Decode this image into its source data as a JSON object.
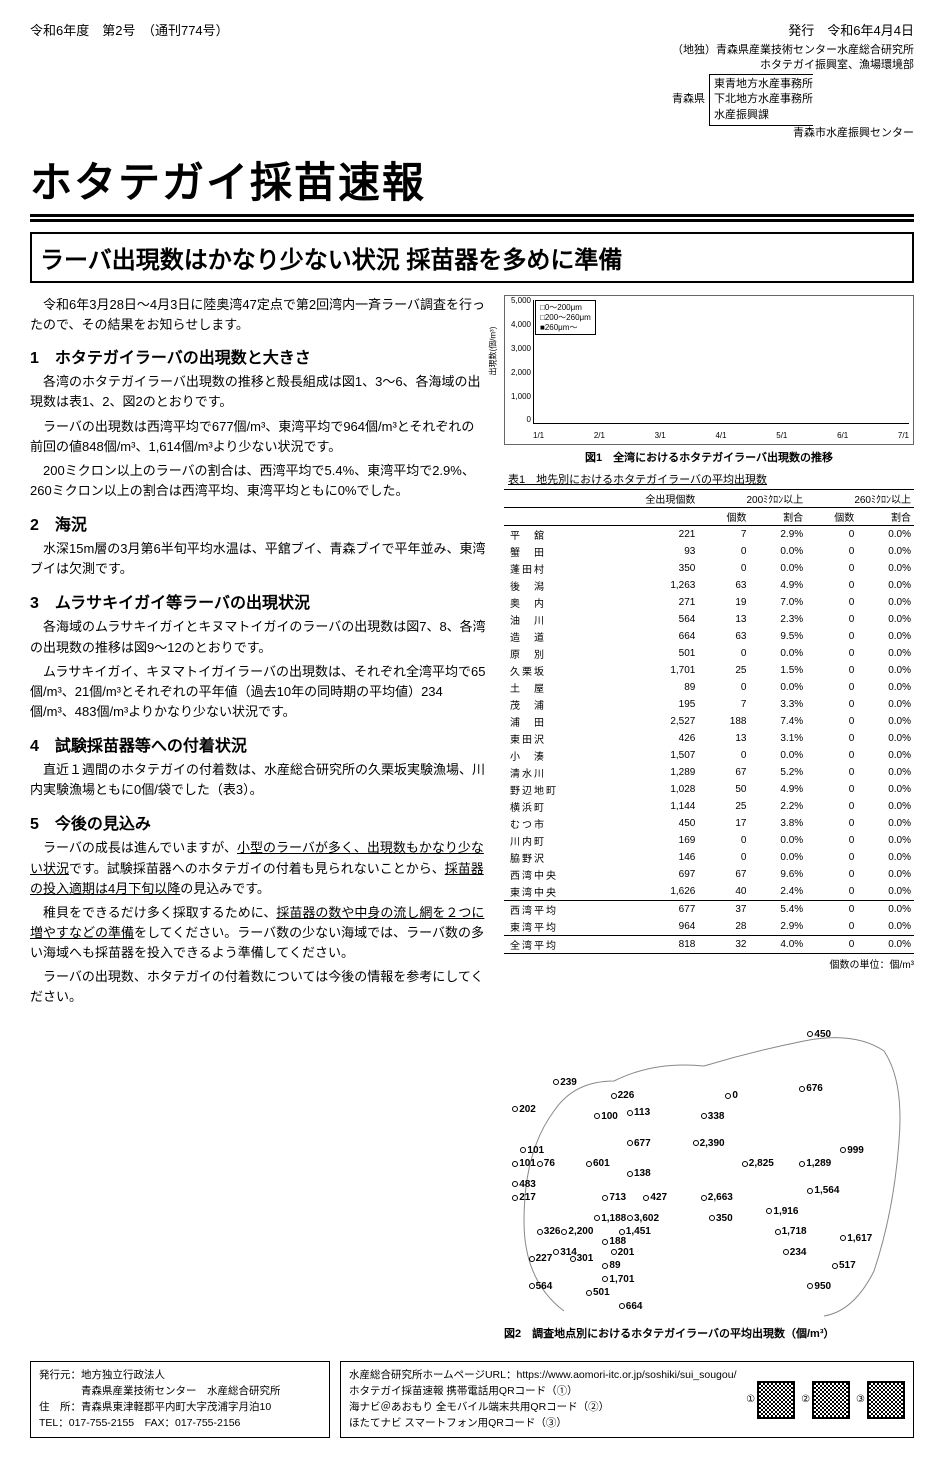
{
  "header": {
    "left": "令和6年度　第2号　（通刊774号）",
    "right": "発行　令和6年4月4日"
  },
  "publisher": {
    "line1": "（地独）青森県産業技術センター水産総合研究所",
    "line2": "ホタテガイ振興室、漁場環境部",
    "pref": "青森県",
    "offices": [
      "東青地方水産事務所",
      "下北地方水産事務所",
      "水産振興課"
    ],
    "last": "青森市水産振興センター"
  },
  "main_title": "ホタテガイ採苗速報",
  "headline": "ラーバ出現数はかなり少ない状況 採苗器を多めに準備",
  "lead": "令和6年3月28日～4月3日に陸奥湾47定点で第2回湾内一斉ラーバ調査を行ったので、その結果をお知らせします。",
  "sections": {
    "s1": {
      "title": "1　ホタテガイラーバの出現数と大きさ",
      "p1": "各湾のホタテガイラーバ出現数の推移と殻長組成は図1、3～6、各海域の出現数は表1、2、図2のとおりです。",
      "p2": "ラーバの出現数は西湾平均で677個/m³、東湾平均で964個/m³とそれぞれの前回の値848個/m³、1,614個/m³より少ない状況です。",
      "p3": "200ミクロン以上のラーバの割合は、西湾平均で5.4%、東湾平均で2.9%、260ミクロン以上の割合は西湾平均、東湾平均ともに0%でした。"
    },
    "s2": {
      "title": "2　海況",
      "p1": "水深15m層の3月第6半旬平均水温は、平舘ブイ、青森ブイで平年並み、東湾ブイは欠測です。"
    },
    "s3": {
      "title": "3　ムラサキイガイ等ラーバの出現状況",
      "p1": "各海域のムラサキイガイとキヌマトイガイのラーバの出現数は図7、8、各湾の出現数の推移は図9～12のとおりです。",
      "p2": "ムラサキイガイ、キヌマトイガイラーバの出現数は、それぞれ全湾平均で65個/m³、21個/m³とそれぞれの平年値（過去10年の同時期の平均値）234個/m³、483個/m³よりかなり少ない状況です。"
    },
    "s4": {
      "title": "4　試験採苗器等への付着状況",
      "p1": "直近１週間のホタテガイの付着数は、水産総合研究所の久栗坂実験漁場、川内実験漁場ともに0個/袋でした（表3）。"
    },
    "s5": {
      "title": "5　今後の見込み",
      "p1a": "ラーバの成長は進んでいますが、",
      "p1b": "小型のラーバが多く、出現数もかなり少ない状況",
      "p1c": "です。試験採苗器へのホタテガイの付着も見られないことから、",
      "p1d": "採苗器の投入適期は4月下旬以降",
      "p1e": "の見込みです。",
      "p2a": "稚貝をできるだけ多く採取するために、",
      "p2b": "採苗器の数や中身の流し網を２つに増やすなどの準備",
      "p2c": "をしてください。ラーバ数の少ない海域では、ラーバ数の多い海域へも採苗器を投入できるよう準備してください。",
      "p3": "ラーバの出現数、ホタテガイの付着数については今後の情報を参考にしてください。"
    }
  },
  "chart1": {
    "caption": "図1　全湾におけるホタテガイラーバ出現数の推移",
    "ylabel": "出現数(個/m³)",
    "ylim": [
      0,
      5000
    ],
    "ytick_step": 1000,
    "yticks": [
      "0",
      "1,000",
      "2,000",
      "3,000",
      "4,000",
      "5,000"
    ],
    "xticks": [
      "1/1",
      "2/1",
      "3/1",
      "4/1",
      "5/1",
      "6/1",
      "7/1"
    ],
    "legend": [
      "□0～200μm",
      "□200～260μm",
      "■260μm～"
    ]
  },
  "table1": {
    "caption": "表1　地先別におけるホタテガイラーバの平均出現数",
    "col_group": [
      "全出現個数",
      "200ﾐｸﾛﾝ以上",
      "260ﾐｸﾛﾝ以上"
    ],
    "sub_cols": [
      "個数",
      "割合",
      "個数",
      "割合"
    ],
    "unit": "個数の単位：個/m³",
    "rows": [
      {
        "loc": "平　舘",
        "total": "221",
        "c200n": "7",
        "c200p": "2.9%",
        "c260n": "0",
        "c260p": "0.0%"
      },
      {
        "loc": "蟹　田",
        "total": "93",
        "c200n": "0",
        "c200p": "0.0%",
        "c260n": "0",
        "c260p": "0.0%"
      },
      {
        "loc": "蓬田村",
        "total": "350",
        "c200n": "0",
        "c200p": "0.0%",
        "c260n": "0",
        "c260p": "0.0%"
      },
      {
        "loc": "後　潟",
        "total": "1,263",
        "c200n": "63",
        "c200p": "4.9%",
        "c260n": "0",
        "c260p": "0.0%"
      },
      {
        "loc": "奥　内",
        "total": "271",
        "c200n": "19",
        "c200p": "7.0%",
        "c260n": "0",
        "c260p": "0.0%"
      },
      {
        "loc": "油　川",
        "total": "564",
        "c200n": "13",
        "c200p": "2.3%",
        "c260n": "0",
        "c260p": "0.0%"
      },
      {
        "loc": "造　道",
        "total": "664",
        "c200n": "63",
        "c200p": "9.5%",
        "c260n": "0",
        "c260p": "0.0%"
      },
      {
        "loc": "原　別",
        "total": "501",
        "c200n": "0",
        "c200p": "0.0%",
        "c260n": "0",
        "c260p": "0.0%"
      },
      {
        "loc": "久栗坂",
        "total": "1,701",
        "c200n": "25",
        "c200p": "1.5%",
        "c260n": "0",
        "c260p": "0.0%"
      },
      {
        "loc": "土　屋",
        "total": "89",
        "c200n": "0",
        "c200p": "0.0%",
        "c260n": "0",
        "c260p": "0.0%"
      },
      {
        "loc": "茂　浦",
        "total": "195",
        "c200n": "7",
        "c200p": "3.3%",
        "c260n": "0",
        "c260p": "0.0%"
      },
      {
        "loc": "浦　田",
        "total": "2,527",
        "c200n": "188",
        "c200p": "7.4%",
        "c260n": "0",
        "c260p": "0.0%"
      },
      {
        "loc": "東田沢",
        "total": "426",
        "c200n": "13",
        "c200p": "3.1%",
        "c260n": "0",
        "c260p": "0.0%"
      },
      {
        "loc": "小　湊",
        "total": "1,507",
        "c200n": "0",
        "c200p": "0.0%",
        "c260n": "0",
        "c260p": "0.0%"
      },
      {
        "loc": "清水川",
        "total": "1,289",
        "c200n": "67",
        "c200p": "5.2%",
        "c260n": "0",
        "c260p": "0.0%"
      },
      {
        "loc": "野辺地町",
        "total": "1,028",
        "c200n": "50",
        "c200p": "4.9%",
        "c260n": "0",
        "c260p": "0.0%"
      },
      {
        "loc": "横浜町",
        "total": "1,144",
        "c200n": "25",
        "c200p": "2.2%",
        "c260n": "0",
        "c260p": "0.0%"
      },
      {
        "loc": "むつ市",
        "total": "450",
        "c200n": "17",
        "c200p": "3.8%",
        "c260n": "0",
        "c260p": "0.0%"
      },
      {
        "loc": "川内町",
        "total": "169",
        "c200n": "0",
        "c200p": "0.0%",
        "c260n": "0",
        "c260p": "0.0%"
      },
      {
        "loc": "脇野沢",
        "total": "146",
        "c200n": "0",
        "c200p": "0.0%",
        "c260n": "0",
        "c260p": "0.0%"
      },
      {
        "loc": "西湾中央",
        "total": "697",
        "c200n": "67",
        "c200p": "9.6%",
        "c260n": "0",
        "c260p": "0.0%"
      },
      {
        "loc": "東湾中央",
        "total": "1,626",
        "c200n": "40",
        "c200p": "2.4%",
        "c260n": "0",
        "c260p": "0.0%"
      }
    ],
    "summary": [
      {
        "loc": "西湾平均",
        "total": "677",
        "c200n": "37",
        "c200p": "5.4%",
        "c260n": "0",
        "c260p": "0.0%"
      },
      {
        "loc": "東湾平均",
        "total": "964",
        "c200n": "28",
        "c200p": "2.9%",
        "c260n": "0",
        "c260p": "0.0%"
      },
      {
        "loc": "全湾平均",
        "total": "818",
        "c200n": "32",
        "c200p": "4.0%",
        "c260n": "0",
        "c260p": "0.0%"
      }
    ]
  },
  "fig2": {
    "caption": "図2　調査地点別におけるホタテガイラーバの平均出現数（個/m³）",
    "points": [
      {
        "x": 12,
        "y": 28,
        "v": "239"
      },
      {
        "x": 2,
        "y": 36,
        "v": "202"
      },
      {
        "x": 4,
        "y": 48,
        "v": "101"
      },
      {
        "x": 2,
        "y": 52,
        "v": "101"
      },
      {
        "x": 8,
        "y": 52,
        "v": "76"
      },
      {
        "x": 2,
        "y": 58,
        "v": "483"
      },
      {
        "x": 2,
        "y": 62,
        "v": "217"
      },
      {
        "x": 8,
        "y": 72,
        "v": "326"
      },
      {
        "x": 14,
        "y": 72,
        "v": "2,200"
      },
      {
        "x": 12,
        "y": 78,
        "v": "314"
      },
      {
        "x": 6,
        "y": 80,
        "v": "227"
      },
      {
        "x": 16,
        "y": 80,
        "v": "301"
      },
      {
        "x": 6,
        "y": 88,
        "v": "564"
      },
      {
        "x": 26,
        "y": 32,
        "v": "226"
      },
      {
        "x": 22,
        "y": 38,
        "v": "100"
      },
      {
        "x": 30,
        "y": 37,
        "v": "113"
      },
      {
        "x": 20,
        "y": 52,
        "v": "601"
      },
      {
        "x": 30,
        "y": 46,
        "v": "677"
      },
      {
        "x": 30,
        "y": 55,
        "v": "138"
      },
      {
        "x": 24,
        "y": 62,
        "v": "713"
      },
      {
        "x": 34,
        "y": 62,
        "v": "427"
      },
      {
        "x": 22,
        "y": 68,
        "v": "1,188"
      },
      {
        "x": 30,
        "y": 68,
        "v": "3,602"
      },
      {
        "x": 28,
        "y": 72,
        "v": "1,451"
      },
      {
        "x": 24,
        "y": 75,
        "v": "188"
      },
      {
        "x": 26,
        "y": 78,
        "v": "201"
      },
      {
        "x": 24,
        "y": 82,
        "v": "89"
      },
      {
        "x": 24,
        "y": 86,
        "v": "1,701"
      },
      {
        "x": 20,
        "y": 90,
        "v": "501"
      },
      {
        "x": 28,
        "y": 94,
        "v": "664"
      },
      {
        "x": 54,
        "y": 32,
        "v": "0"
      },
      {
        "x": 48,
        "y": 38,
        "v": "338"
      },
      {
        "x": 46,
        "y": 46,
        "v": "2,390"
      },
      {
        "x": 48,
        "y": 62,
        "v": "2,663"
      },
      {
        "x": 50,
        "y": 68,
        "v": "350"
      },
      {
        "x": 58,
        "y": 52,
        "v": "2,825"
      },
      {
        "x": 74,
        "y": 14,
        "v": "450"
      },
      {
        "x": 72,
        "y": 30,
        "v": "676"
      },
      {
        "x": 82,
        "y": 48,
        "v": "999"
      },
      {
        "x": 72,
        "y": 52,
        "v": "1,289"
      },
      {
        "x": 74,
        "y": 60,
        "v": "1,564"
      },
      {
        "x": 64,
        "y": 66,
        "v": "1,916"
      },
      {
        "x": 66,
        "y": 72,
        "v": "1,718"
      },
      {
        "x": 82,
        "y": 74,
        "v": "1,617"
      },
      {
        "x": 68,
        "y": 78,
        "v": "234"
      },
      {
        "x": 80,
        "y": 82,
        "v": "517"
      },
      {
        "x": 74,
        "y": 88,
        "v": "950"
      }
    ]
  },
  "footer": {
    "left": {
      "l1": "発行元：地方独立行政法人",
      "l2": "　　　　青森県産業技術センター　水産総合研究所",
      "l3": "住　所：青森県東津軽郡平内町大字茂浦字月泊10",
      "l4": "TEL：017-755-2155　FAX：017-755-2156"
    },
    "right": {
      "l1": "水産総合研究所ホームページURL：https://www.aomori-itc.or.jp/soshiki/sui_sougou/",
      "l2": "ホタテガイ採苗速報 携帯電話用QRコード（①）",
      "l3": "海ナビ＠あおもり 全モバイル端末共用QRコード（②）",
      "l4": "ほたてナビ スマートフォン用QRコード（③）",
      "q1": "①",
      "q2": "②",
      "q3": "③"
    }
  }
}
